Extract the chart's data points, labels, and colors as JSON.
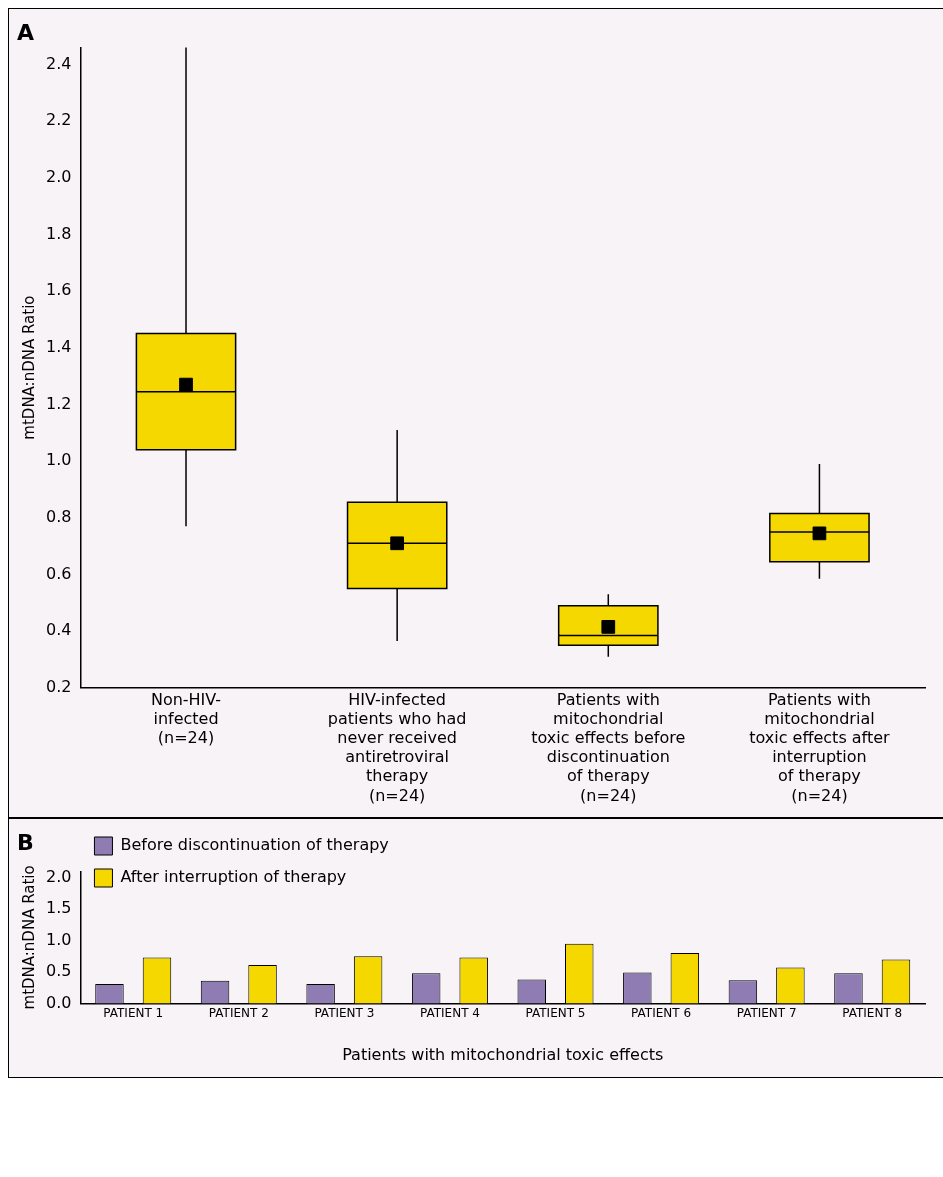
{
  "chart_data": [
    {
      "type": "box",
      "title": "A",
      "ylabel": "mtDNA:nDNA Ratio",
      "categories": [
        "Non-HIV-\ninfected\n(n=24)",
        "HIV-infected\npatients who had\nnever received\nantiretroviral\ntherapy\n(n=24)",
        "Patients with\nmitochondrial\ntoxic effects before\ndiscontinuation\nof therapy\n(n=24)",
        "Patients with\nmitochondrial\ntoxic effects after\ninterruption\nof therapy\n(n=24)"
      ],
      "series": [
        {
          "color": "#f5d800",
          "boxes": [
            {
              "low": 0.77,
              "q1": 1.04,
              "median": 1.245,
              "q3": 1.45,
              "high": 2.46,
              "mean": 1.27
            },
            {
              "low": 0.365,
              "q1": 0.55,
              "median": 0.71,
              "q3": 0.855,
              "high": 1.11,
              "mean": 0.71
            },
            {
              "low": 0.31,
              "q1": 0.35,
              "median": 0.385,
              "q3": 0.49,
              "high": 0.53,
              "mean": 0.415
            },
            {
              "low": 0.585,
              "q1": 0.645,
              "median": 0.75,
              "q3": 0.815,
              "high": 0.99,
              "mean": 0.745
            }
          ]
        }
      ],
      "ylim": [
        0.2,
        2.46
      ],
      "yticks": [
        {
          "value": 0.2,
          "label": "0.2"
        },
        {
          "value": 0.4,
          "label": "0.4"
        },
        {
          "value": 0.6,
          "label": "0.6"
        },
        {
          "value": 0.8,
          "label": "0.8"
        },
        {
          "value": 1,
          "label": "1.0"
        },
        {
          "value": 1.2,
          "label": "1.2"
        },
        {
          "value": 1.4,
          "label": "1.4"
        },
        {
          "value": 1.6,
          "label": "1.6"
        },
        {
          "value": 1.8,
          "label": "1.8"
        },
        {
          "value": 2,
          "label": "2.0"
        },
        {
          "value": 2.2,
          "label": "2.2"
        },
        {
          "value": 2.4,
          "label": "2.4"
        }
      ],
      "marker": "square",
      "grid": false
    },
    {
      "type": "bar",
      "title": "B",
      "ylabel": "mtDNA:nDNA Ratio",
      "xlabel": "Patients with mitochondrial toxic effects",
      "categories": [
        "PATIENT 1",
        "PATIENT 2",
        "PATIENT 3",
        "PATIENT 4",
        "PATIENT 5",
        "PATIENT 6",
        "PATIENT 7",
        "PATIENT 8"
      ],
      "series": [
        {
          "name": "Before discontinuation of therapy",
          "color": "#8e7cb3",
          "values": [
            0.31,
            0.36,
            0.31,
            0.48,
            0.38,
            0.49,
            0.37,
            0.48
          ]
        },
        {
          "name": "After interruption of therapy",
          "color": "#f5d800",
          "values": [
            0.73,
            0.61,
            0.75,
            0.73,
            0.95,
            0.8,
            0.57,
            0.7
          ]
        }
      ],
      "ylim": [
        0,
        2.1
      ],
      "yticks": [
        {
          "value": 0,
          "label": "0.0"
        },
        {
          "value": 0.5,
          "label": "0.5"
        },
        {
          "value": 1,
          "label": "1.0"
        },
        {
          "value": 1.5,
          "label": "1.5"
        },
        {
          "value": 2,
          "label": "2.0"
        }
      ],
      "legend": "top left",
      "grid": false
    }
  ]
}
